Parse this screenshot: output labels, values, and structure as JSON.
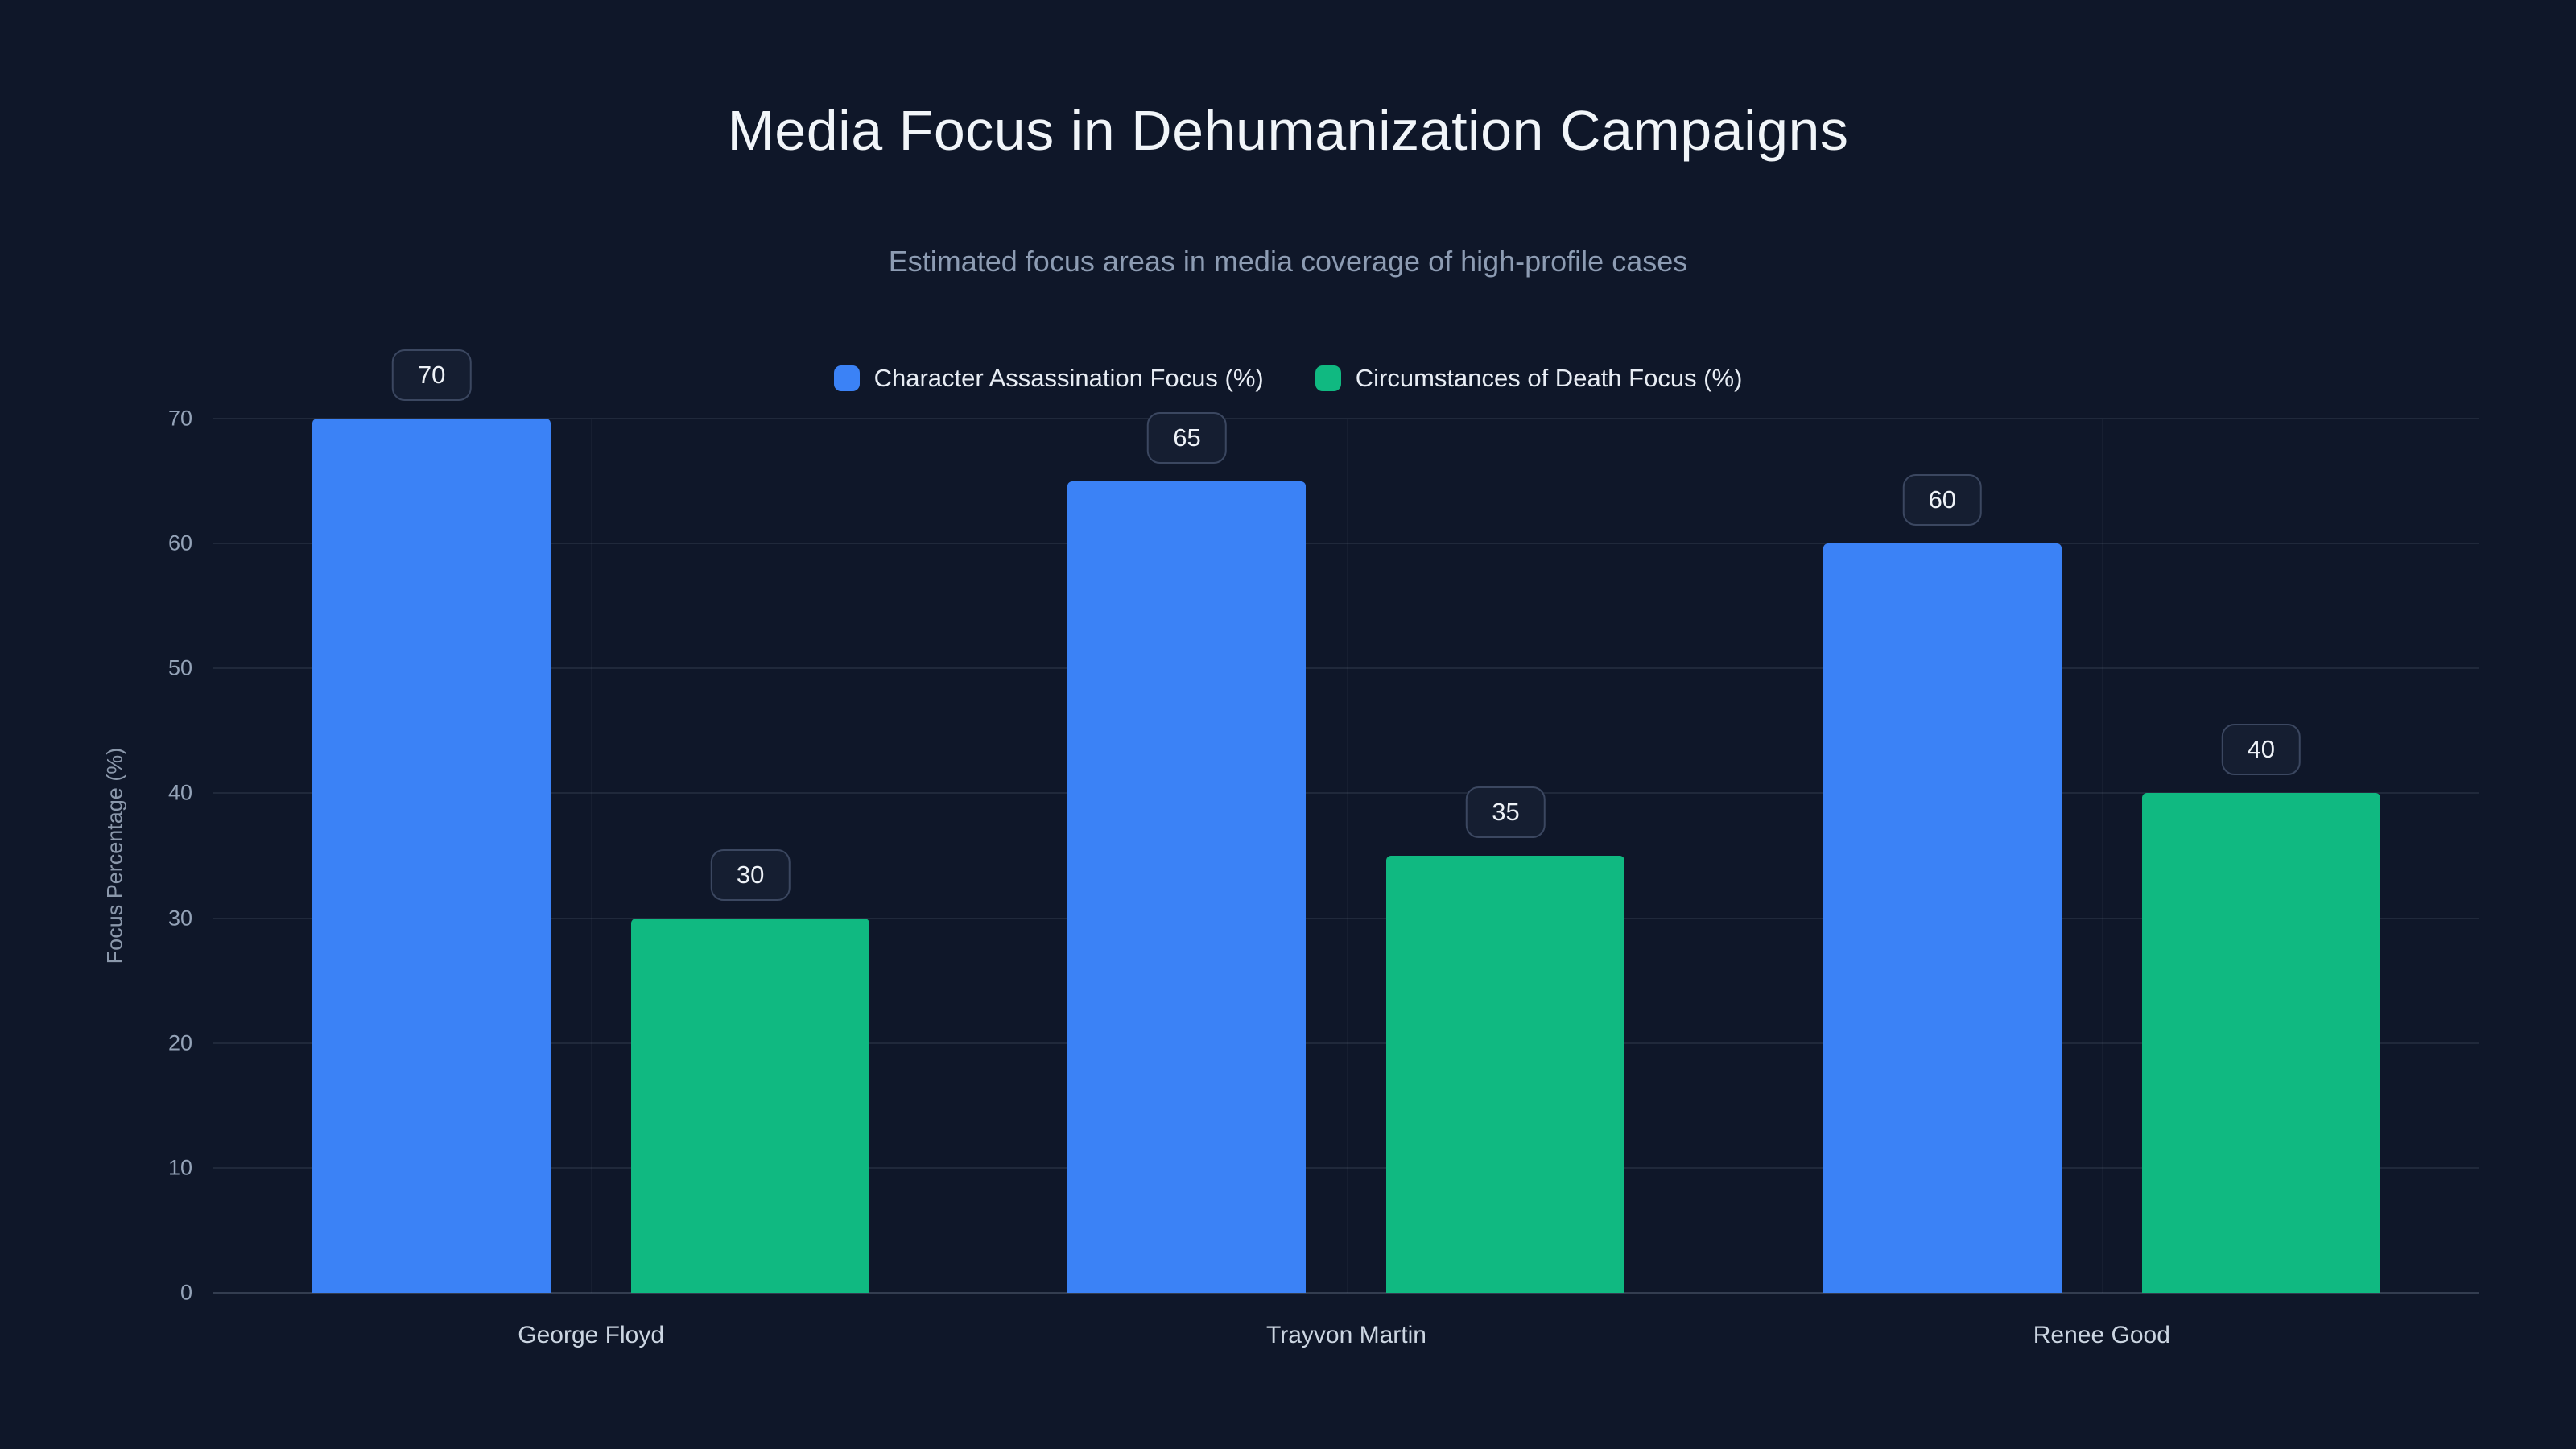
{
  "chart_data": {
    "type": "bar",
    "title": "Media Focus in Dehumanization Campaigns",
    "subtitle": "Estimated focus areas in media coverage of high-profile cases",
    "categories": [
      "George Floyd",
      "Trayvon Martin",
      "Renee Good"
    ],
    "series": [
      {
        "name": "Character Assassination Focus (%)",
        "color": "#3b82f6",
        "values": [
          70,
          65,
          60
        ]
      },
      {
        "name": "Circumstances of Death Focus (%)",
        "color": "#10b981",
        "values": [
          30,
          35,
          40
        ]
      }
    ],
    "xlabel": "",
    "ylabel": "Focus Percentage (%)",
    "ylim": [
      0,
      70
    ],
    "yticks": [
      0,
      10,
      20,
      30,
      40,
      50,
      60,
      70
    ],
    "grid": true,
    "legend_position": "top",
    "data_labels": true,
    "colors": {
      "background": "#0f1729",
      "grid": "rgba(148,163,184,0.13)",
      "tick_text": "#94a3b8",
      "category_text": "#cbd5e1",
      "title_text": "#f1f5f9",
      "subtitle_text": "#8d9cb3",
      "badge_background": "#151e31",
      "badge_border": "#3b4760"
    }
  }
}
